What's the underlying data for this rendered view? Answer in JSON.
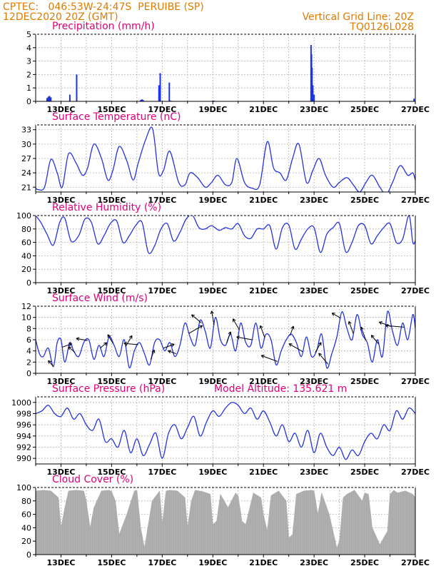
{
  "header": {
    "line1_left": "CPTEC:   046:53W-24:47S  PERUIBE (SP)",
    "line2_left": "12DEC2020 20Z (GMT)",
    "line1_right": "Vertical Grid Line: 20Z",
    "line2_right": "TQ0126L028",
    "color": "#e07b00"
  },
  "colors": {
    "title": "#e0007a",
    "line": "#2433e0",
    "bar": "#1e32e6",
    "cloud": "#a9a9a9",
    "arrow": "#000000"
  },
  "x_ticks": [
    "13DEC",
    "15DEC",
    "17DEC",
    "19DEC",
    "21DEC",
    "23DEC",
    "25DEC",
    "27DEC"
  ],
  "model_altitude": "Model Altitude: 135.621 m",
  "chart_data": [
    {
      "type": "bar",
      "title": "Precipitation (mm/h)",
      "ylim": [
        0,
        5
      ],
      "yticks": [
        0,
        1,
        2,
        3,
        4,
        5
      ],
      "x_unit": "days since 12DEC2020 00Z",
      "x": [
        0.45,
        0.5,
        0.55,
        0.6,
        1.35,
        1.62,
        4.15,
        4.2,
        4.25,
        4.87,
        4.92,
        5.28,
        5.34,
        7.0,
        7.05,
        10.88,
        10.9,
        10.92,
        10.95,
        11.0,
        14.95
      ],
      "values": [
        0.25,
        0.35,
        0.4,
        0.3,
        0.5,
        2.0,
        0.1,
        0.15,
        0.1,
        1.2,
        2.1,
        1.4,
        0.05,
        0.05,
        0.05,
        4.2,
        3.5,
        2.5,
        1.2,
        0.5,
        0.2
      ]
    },
    {
      "type": "line",
      "title": "Surface Temperature (nC)",
      "ylim": [
        20,
        34
      ],
      "yticks": [
        21,
        24,
        27,
        30,
        33
      ],
      "x": [
        0,
        0.1,
        0.35,
        0.6,
        0.85,
        1.05,
        1.3,
        1.6,
        1.85,
        2.05,
        2.3,
        2.6,
        2.85,
        3.05,
        3.3,
        3.6,
        3.85,
        4.05,
        4.35,
        4.62,
        4.85,
        5.05,
        5.3,
        5.65,
        5.9,
        6.1,
        6.4,
        6.7,
        6.95,
        7.2,
        7.5,
        7.75,
        7.95,
        8.25,
        8.55,
        8.85,
        9.15,
        9.4,
        9.65,
        9.9,
        10.15,
        10.4,
        10.7,
        10.95,
        11.2,
        11.45,
        11.75,
        12.0,
        12.3,
        12.55,
        12.8,
        13.05,
        13.3,
        13.6,
        13.85,
        14.1,
        14.4,
        14.7,
        14.9,
        15.0
      ],
      "y": [
        20.8,
        20.5,
        21.0,
        26.8,
        24.0,
        21.0,
        28.0,
        26.0,
        23.5,
        25.0,
        30.0,
        27.0,
        22.5,
        24.5,
        29.5,
        26.5,
        22.5,
        26.0,
        31.0,
        33.2,
        24.0,
        24.5,
        28.5,
        22.0,
        21.5,
        24.0,
        23.0,
        21.0,
        22.0,
        23.5,
        21.5,
        22.0,
        27.0,
        22.0,
        20.8,
        21.5,
        30.5,
        25.0,
        24.0,
        22.5,
        27.0,
        30.0,
        22.0,
        24.5,
        27.0,
        23.5,
        21.0,
        22.0,
        23.0,
        21.5,
        20.0,
        22.0,
        23.5,
        21.0,
        19.5,
        22.0,
        25.5,
        23.5,
        24.0,
        22.5
      ]
    },
    {
      "type": "line",
      "title": "Relative Humidity (%)",
      "ylim": [
        0,
        100
      ],
      "yticks": [
        0,
        20,
        40,
        60,
        80,
        100
      ],
      "x": [
        0,
        0.2,
        0.45,
        0.7,
        0.95,
        1.15,
        1.4,
        1.7,
        1.95,
        2.2,
        2.45,
        2.7,
        2.95,
        3.2,
        3.45,
        3.7,
        3.95,
        4.2,
        4.45,
        4.7,
        4.95,
        5.2,
        5.45,
        5.7,
        5.95,
        6.2,
        6.45,
        6.7,
        6.95,
        7.25,
        7.5,
        7.75,
        8.0,
        8.25,
        8.5,
        8.75,
        9.0,
        9.25,
        9.5,
        9.75,
        10.0,
        10.25,
        10.5,
        10.75,
        11.0,
        11.25,
        11.5,
        11.75,
        12.0,
        12.25,
        12.5,
        12.75,
        13.0,
        13.25,
        13.5,
        13.75,
        14.0,
        14.25,
        14.5,
        14.75,
        14.9,
        15.0
      ],
      "y": [
        100,
        90,
        72,
        56,
        90,
        96,
        62,
        70,
        95,
        90,
        58,
        70,
        88,
        92,
        60,
        70,
        85,
        90,
        45,
        55,
        80,
        88,
        62,
        75,
        95,
        100,
        82,
        80,
        85,
        78,
        82,
        80,
        88,
        70,
        66,
        80,
        80,
        85,
        50,
        82,
        86,
        50,
        65,
        80,
        82,
        45,
        72,
        82,
        88,
        46,
        60,
        85,
        85,
        58,
        70,
        82,
        88,
        60,
        65,
        100,
        60,
        62
      ]
    },
    {
      "type": "line",
      "title": "Surface Wind (m/s)",
      "ylim": [
        0,
        12
      ],
      "yticks": [
        0,
        2,
        4,
        6,
        8,
        10,
        12
      ],
      "x": [
        0,
        0.15,
        0.3,
        0.5,
        0.7,
        0.85,
        1.0,
        1.15,
        1.35,
        1.5,
        1.7,
        1.9,
        2.1,
        2.3,
        2.5,
        2.7,
        2.9,
        3.1,
        3.3,
        3.5,
        3.7,
        3.9,
        4.1,
        4.3,
        4.5,
        4.7,
        4.9,
        5.1,
        5.3,
        5.5,
        5.7,
        5.9,
        6.1,
        6.3,
        6.5,
        6.7,
        6.9,
        7.1,
        7.3,
        7.5,
        7.7,
        7.9,
        8.1,
        8.3,
        8.5,
        8.7,
        8.9,
        9.1,
        9.3,
        9.5,
        9.7,
        9.9,
        10.1,
        10.3,
        10.5,
        10.7,
        10.9,
        11.1,
        11.3,
        11.5,
        11.7,
        11.9,
        12.1,
        12.3,
        12.5,
        12.7,
        12.9,
        13.1,
        13.3,
        13.5,
        13.7,
        13.9,
        14.1,
        14.3,
        14.5,
        14.7,
        14.9,
        15.0
      ],
      "y": [
        6.0,
        3.5,
        3.0,
        4.5,
        1.2,
        5.5,
        6.0,
        2.0,
        5.5,
        4.0,
        3.0,
        5.5,
        6.0,
        2.5,
        5.0,
        3.0,
        6.5,
        5.0,
        3.0,
        6.0,
        1.0,
        4.0,
        5.5,
        3.5,
        1.5,
        5.5,
        6.0,
        4.0,
        5.5,
        3.0,
        5.0,
        9.0,
        6.5,
        5.0,
        9.5,
        7.5,
        4.5,
        10.0,
        6.0,
        5.0,
        7.0,
        4.0,
        9.0,
        5.5,
        5.0,
        9.0,
        4.5,
        7.0,
        6.0,
        1.5,
        4.0,
        6.0,
        7.0,
        5.5,
        3.0,
        6.5,
        3.0,
        4.0,
        7.0,
        1.0,
        3.5,
        6.5,
        11.0,
        8.0,
        6.0,
        10.5,
        7.0,
        5.5,
        2.0,
        6.0,
        3.0,
        11.0,
        7.5,
        5.0,
        9.0,
        6.0,
        10.5,
        8.0
      ],
      "arrows_x": [
        0.7,
        1.05,
        1.55,
        2.05,
        2.55,
        3.05,
        3.55,
        4.05,
        4.55,
        5.05,
        5.55,
        6.05,
        6.55,
        7.05,
        7.55,
        8.05,
        8.55,
        9.05,
        9.55,
        10.05,
        10.55,
        11.05,
        11.55,
        12.05,
        12.55,
        13.05,
        13.55,
        14.05,
        14.55
      ],
      "arrows_dir_deg": [
        130,
        20,
        140,
        170,
        40,
        120,
        60,
        175,
        70,
        20,
        160,
        30,
        140,
        100,
        70,
        120,
        170,
        110,
        160,
        70,
        150,
        60,
        130,
        150,
        110,
        110,
        130,
        160,
        175
      ],
      "arrows_len": [
        11,
        14,
        12,
        16,
        12,
        14,
        18,
        20,
        14,
        16,
        12,
        22,
        18,
        20,
        16,
        18,
        22,
        18,
        24,
        14,
        22,
        16,
        20,
        14,
        18,
        20,
        16,
        18,
        26
      ]
    },
    {
      "type": "line",
      "title": "Surface Pressure (hPa)",
      "ylim": [
        989,
        1001
      ],
      "yticks": [
        990,
        992,
        994,
        996,
        998,
        1000
      ],
      "x": [
        0,
        0.25,
        0.5,
        0.75,
        1.0,
        1.25,
        1.5,
        1.75,
        2.0,
        2.25,
        2.5,
        2.75,
        3.0,
        3.25,
        3.5,
        3.75,
        4.0,
        4.25,
        4.5,
        4.75,
        5.0,
        5.25,
        5.5,
        5.75,
        6.0,
        6.25,
        6.5,
        6.75,
        7.0,
        7.25,
        7.5,
        7.75,
        8.0,
        8.25,
        8.5,
        8.75,
        9.0,
        9.25,
        9.5,
        9.75,
        10.0,
        10.25,
        10.5,
        10.75,
        11.0,
        11.25,
        11.5,
        11.75,
        12.0,
        12.25,
        12.5,
        12.75,
        13.0,
        13.25,
        13.5,
        13.75,
        14.0,
        14.25,
        14.5,
        14.75,
        15.0
      ],
      "y": [
        998.0,
        998.5,
        999.5,
        998.0,
        997.5,
        999.0,
        997.0,
        998.0,
        996.0,
        995.0,
        997.0,
        993.0,
        993.5,
        992.0,
        995.0,
        991.0,
        993.5,
        990.5,
        992.5,
        994.5,
        990.0,
        994.5,
        996.0,
        993.5,
        995.5,
        997.5,
        994.0,
        996.5,
        998.5,
        997.5,
        999.0,
        1000.0,
        999.5,
        998.0,
        999.0,
        997.0,
        998.5,
        996.5,
        994.0,
        996.0,
        993.0,
        994.5,
        992.0,
        995.0,
        991.0,
        994.5,
        992.0,
        990.5,
        992.0,
        989.8,
        991.5,
        990.5,
        993.0,
        994.5,
        993.5,
        996.0,
        995.0,
        998.5,
        997.0,
        999.0,
        998.0
      ]
    },
    {
      "type": "area",
      "title": "Cloud Cover (%)",
      "ylim": [
        0,
        100
      ],
      "yticks": [
        0,
        20,
        40,
        60,
        80,
        100
      ],
      "x": [
        0,
        0.3,
        0.6,
        0.9,
        1.0,
        1.15,
        1.3,
        1.6,
        1.9,
        2.0,
        2.15,
        2.3,
        2.6,
        2.9,
        3.0,
        3.15,
        3.3,
        3.6,
        3.9,
        4.0,
        4.15,
        4.3,
        4.6,
        4.9,
        5.0,
        5.15,
        5.3,
        5.6,
        5.9,
        6.0,
        6.15,
        6.3,
        6.6,
        6.9,
        7.0,
        7.15,
        7.3,
        7.6,
        7.9,
        8.0,
        8.15,
        8.3,
        8.6,
        8.9,
        9.0,
        9.15,
        9.3,
        9.6,
        9.9,
        10.0,
        10.15,
        10.3,
        10.6,
        10.9,
        11.0,
        11.15,
        11.3,
        11.6,
        11.9,
        12.0,
        12.15,
        12.3,
        12.6,
        12.9,
        13.0,
        13.15,
        13.3,
        13.6,
        13.9,
        14.0,
        14.15,
        14.3,
        14.6,
        14.9,
        15.0
      ],
      "y": [
        95,
        96,
        95,
        85,
        40,
        70,
        95,
        96,
        95,
        80,
        40,
        70,
        95,
        96,
        94,
        80,
        30,
        60,
        95,
        96,
        40,
        10,
        80,
        95,
        45,
        95,
        96,
        95,
        85,
        40,
        80,
        96,
        94,
        90,
        45,
        50,
        90,
        70,
        92,
        88,
        50,
        45,
        92,
        85,
        60,
        35,
        88,
        95,
        80,
        25,
        30,
        90,
        95,
        96,
        95,
        60,
        92,
        60,
        10,
        20,
        85,
        90,
        96,
        80,
        92,
        90,
        40,
        15,
        35,
        90,
        96,
        92,
        95,
        90,
        85
      ]
    }
  ]
}
